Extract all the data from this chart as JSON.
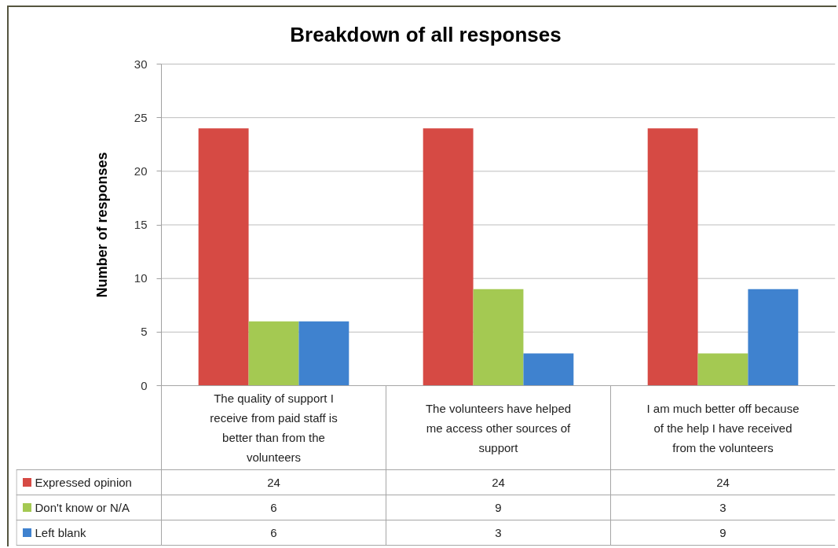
{
  "chart_data": {
    "type": "bar",
    "title": "Breakdown of all responses",
    "ylabel": "Number of responses",
    "categories": [
      "The quality of support I receive from paid staff is better than from the volunteers",
      "The volunteers have helped me access other sources of support",
      "I am much better off because of the help I have received from the volunteers"
    ],
    "series": [
      {
        "name": "Expressed opinion",
        "color": "#d64a44",
        "values": [
          24,
          24,
          24
        ]
      },
      {
        "name": "Don't know or N/A",
        "color": "#a4c952",
        "values": [
          6,
          9,
          3
        ]
      },
      {
        "name": "Left blank",
        "color": "#3f82cf",
        "values": [
          6,
          3,
          9
        ]
      }
    ],
    "ylim": [
      0,
      30
    ],
    "yticks": [
      0,
      5,
      10,
      15,
      20,
      25,
      30
    ],
    "grid": "y",
    "legend": "bottom",
    "data_labels": true
  }
}
